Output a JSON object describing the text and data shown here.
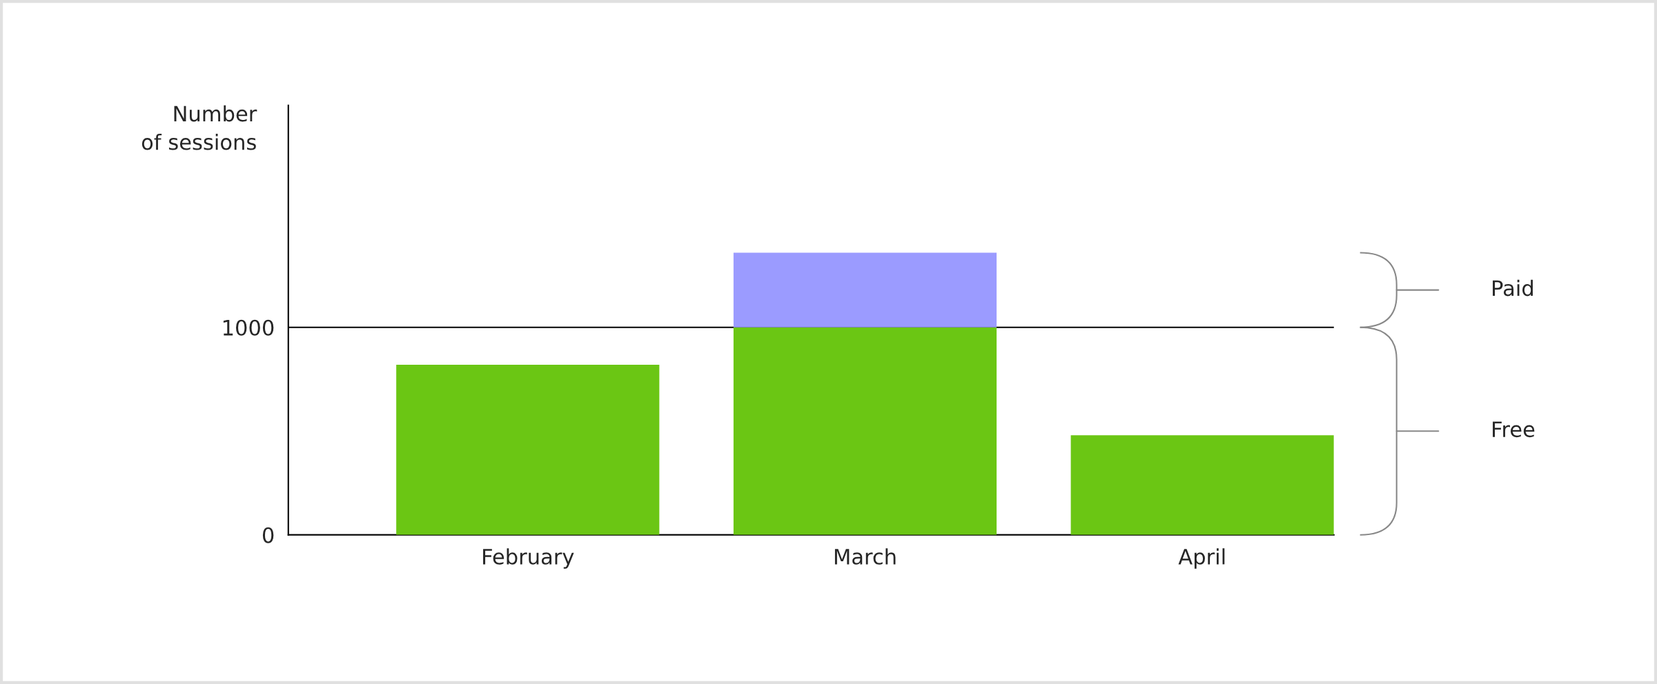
{
  "chart_data": {
    "type": "bar",
    "ylabel": "Number\nof sessions",
    "categories": [
      "February",
      "March",
      "April"
    ],
    "stacked": true,
    "series": [
      {
        "color": "#6bc614",
        "values": [
          820,
          1000,
          480
        ]
      },
      {
        "color": "#9b9bff",
        "values": [
          null,
          360,
          null
        ]
      }
    ],
    "annotations": [
      "Free",
      "Paid"
    ],
    "ylim": [
      0,
      2070
    ],
    "yticks": [
      0,
      1000
    ],
    "grid": "y",
    "legend": false
  }
}
